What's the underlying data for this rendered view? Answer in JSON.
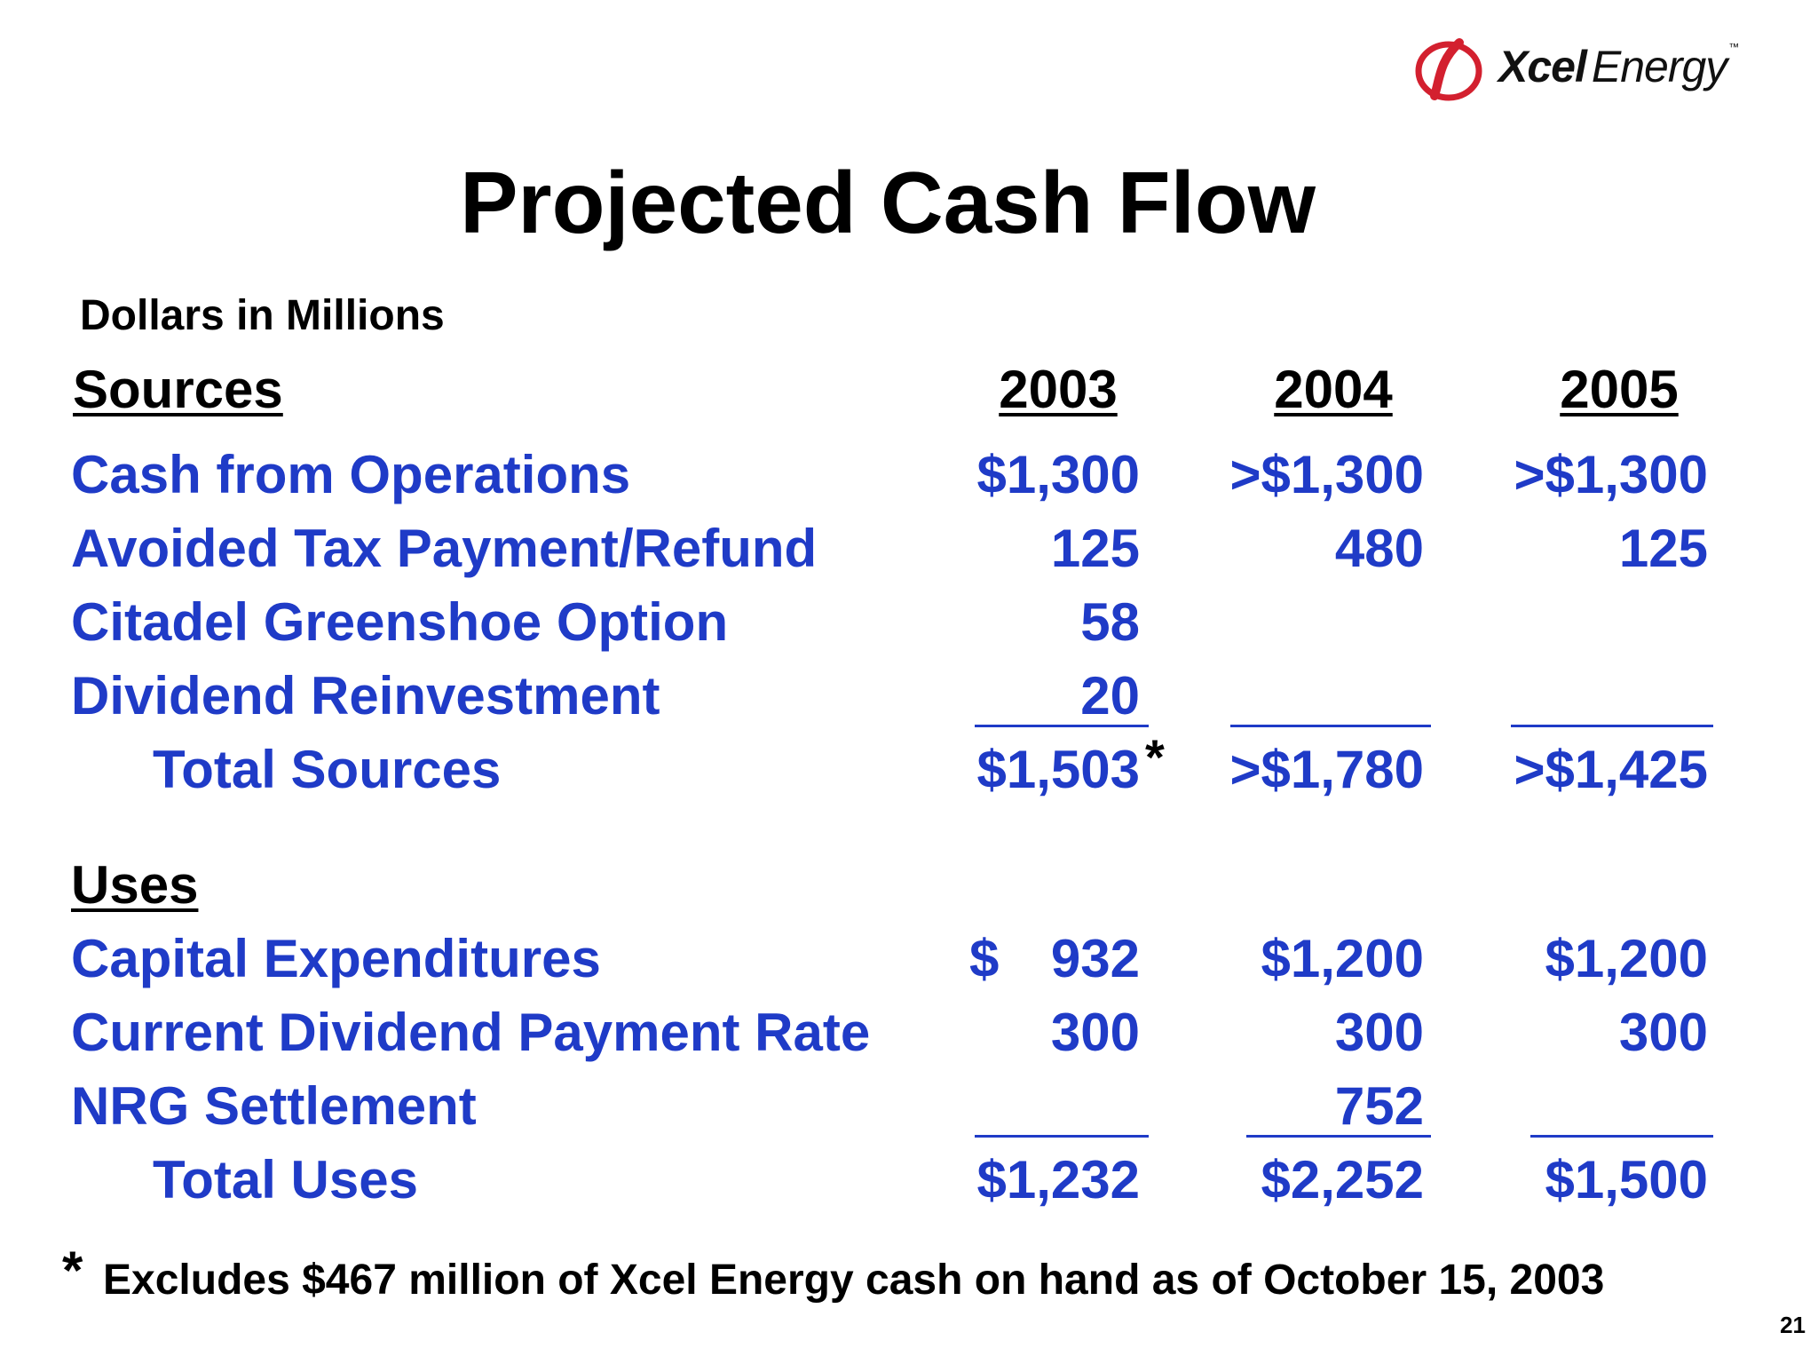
{
  "logo": {
    "word1": "Xcel",
    "word2": "Energy",
    "tm": "™",
    "mark_color": "#d3202f"
  },
  "title": "Projected Cash Flow",
  "units": "Dollars in Millions",
  "years": [
    "2003",
    "2004",
    "2005"
  ],
  "sources": {
    "heading": "Sources",
    "rows": [
      {
        "label": "Cash from Operations",
        "v2003": "$1,300",
        "v2004": ">$1,300",
        "v2005": ">$1,300"
      },
      {
        "label": "Avoided Tax Payment/Refund",
        "v2003": "125",
        "v2004": "480",
        "v2005": "125"
      },
      {
        "label": "Citadel Greenshoe Option",
        "v2003": "58",
        "v2004": "",
        "v2005": ""
      },
      {
        "label": "Dividend Reinvestment",
        "v2003": "20",
        "v2004": "",
        "v2005": ""
      }
    ],
    "total": {
      "label": "Total Sources",
      "v2003": "$1,503",
      "asterisk": "*",
      "v2004": ">$1,780",
      "v2005": ">$1,425"
    }
  },
  "uses": {
    "heading": "Uses",
    "rows": [
      {
        "label": "Capital Expenditures",
        "currency": "$",
        "v2003": "932",
        "v2004": "$1,200",
        "v2005": "$1,200"
      },
      {
        "label": "Current Dividend Payment Rate",
        "v2003": "300",
        "v2004": "300",
        "v2005": "300"
      },
      {
        "label": "NRG Settlement",
        "v2003": "",
        "v2004": "752",
        "v2005": ""
      }
    ],
    "total": {
      "label": "Total Uses",
      "v2003": "$1,232",
      "v2004": "$2,252",
      "v2005": "$1,500"
    }
  },
  "footnote": {
    "marker": "*",
    "text": "Excludes $467 million of Xcel Energy cash on hand as of October 15, 2003"
  },
  "page_number": "21",
  "colors": {
    "value_text": "#1f3bc7",
    "heading_text": "#000000"
  }
}
